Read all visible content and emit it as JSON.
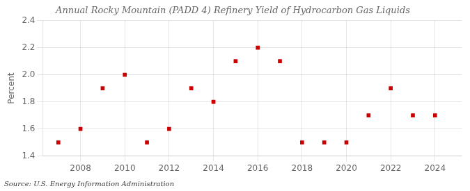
{
  "chart_data": {
    "type": "scatter",
    "title": "Annual Rocky Mountain (PADD 4) Refinery Yield of Hydrocarbon Gas Liquids",
    "ylabel": "Percent",
    "annotations": [
      "Source: U.S. Energy Information Administration"
    ],
    "x": [
      2007,
      2008,
      2009,
      2010,
      2011,
      2012,
      2013,
      2014,
      2015,
      2016,
      2017,
      2018,
      2019,
      2020,
      2021,
      2022,
      2023,
      2024
    ],
    "values": [
      1.5,
      1.6,
      1.9,
      2.0,
      1.5,
      1.6,
      1.9,
      1.8,
      2.1,
      2.2,
      2.1,
      1.5,
      1.5,
      1.5,
      1.7,
      1.9,
      1.7,
      1.7
    ],
    "color": "#cc0000",
    "marker": "square",
    "xlim": [
      2006.3,
      2025.2
    ],
    "xticks": [
      2008,
      2010,
      2012,
      2014,
      2016,
      2018,
      2020,
      2022,
      2024
    ],
    "ylim": [
      1.4,
      2.4
    ],
    "yticks": [
      1.4,
      1.6,
      1.8,
      {
        "value": 2.0,
        "label": "2.0"
      },
      2.2,
      2.4
    ],
    "grid": true
  }
}
